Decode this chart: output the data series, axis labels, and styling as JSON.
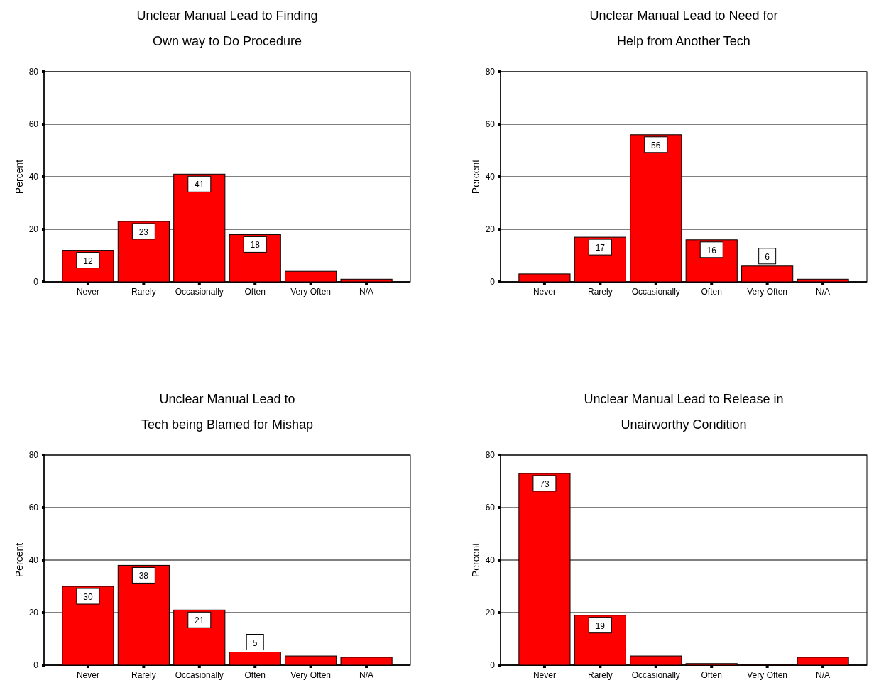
{
  "chart_data": [
    {
      "type": "bar",
      "title": "Unclear Manual Lead to Finding\nOwn way to Do Procedure",
      "ylabel": "Percent",
      "categories": [
        "Never",
        "Rarely",
        "Occasionally",
        "Often",
        "Very Often",
        "N/A"
      ],
      "values": [
        12,
        23,
        41,
        18,
        4,
        1
      ],
      "value_labels": [
        "12",
        "23",
        "41",
        "18",
        null,
        null
      ],
      "color": "#ff0000",
      "ylim": [
        0,
        80
      ],
      "yticks": [
        0,
        20,
        40,
        60,
        80
      ],
      "grid": "y"
    },
    {
      "type": "bar",
      "title": "Unclear Manual Lead to Need for\nHelp from Another Tech",
      "ylabel": "Percent",
      "categories": [
        "Never",
        "Rarely",
        "Occasionally",
        "Often",
        "Very Often",
        "N/A"
      ],
      "values": [
        3,
        17,
        56,
        16,
        6,
        1
      ],
      "value_labels": [
        null,
        "17",
        "56",
        "16",
        "6",
        null
      ],
      "color": "#ff0000",
      "ylim": [
        0,
        80
      ],
      "yticks": [
        0,
        20,
        40,
        60,
        80
      ],
      "grid": "y"
    },
    {
      "type": "bar",
      "title": "Unclear Manual Lead to\nTech being Blamed for Mishap",
      "ylabel": "Percent",
      "categories": [
        "Never",
        "Rarely",
        "Occasionally",
        "Often",
        "Very Often",
        "N/A"
      ],
      "values": [
        30,
        38,
        21,
        5,
        3.5,
        3
      ],
      "value_labels": [
        "30",
        "38",
        "21",
        "5",
        null,
        null
      ],
      "color": "#ff0000",
      "ylim": [
        0,
        80
      ],
      "yticks": [
        0,
        20,
        40,
        60,
        80
      ],
      "grid": "y"
    },
    {
      "type": "bar",
      "title": "Unclear Manual Lead to Release in\nUnairworthy Condition",
      "ylabel": "Percent",
      "categories": [
        "Never",
        "Rarely",
        "Occasionally",
        "Often",
        "Very Often",
        "N/A"
      ],
      "values": [
        73,
        19,
        3.5,
        0.6,
        0.3,
        3
      ],
      "value_labels": [
        "73",
        "19",
        null,
        null,
        null,
        null
      ],
      "color": "#ff0000",
      "ylim": [
        0,
        80
      ],
      "yticks": [
        0,
        20,
        40,
        60,
        80
      ],
      "grid": "y"
    }
  ]
}
